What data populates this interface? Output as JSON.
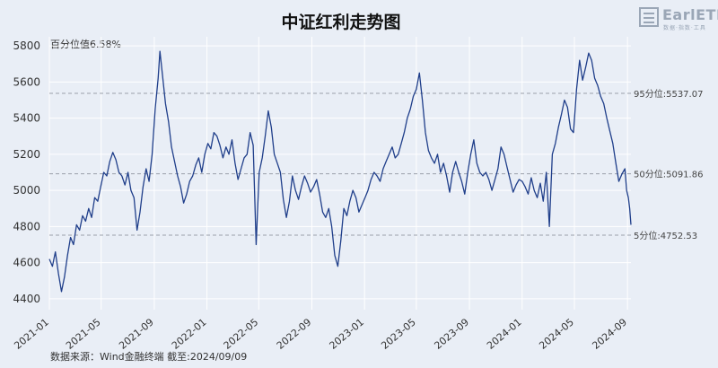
{
  "header": {
    "title": "中证红利走势图",
    "logo_brand": "EarlETF",
    "logo_sub": "数据·指数·工具"
  },
  "percentile_note": "百分位值6.58%",
  "source_note": "数据来源：Wind金融终端 截至:2024/09/09",
  "colors": {
    "line": "#1f3e8a",
    "refline": "#9aa0aa",
    "grid": "#ffffff",
    "background": "#e9eef6"
  },
  "chart_data": {
    "type": "line",
    "title": "中证红利走势图",
    "xlabel": "",
    "ylabel": "",
    "x_ticks": [
      "2021-01",
      "2021-05",
      "2021-09",
      "2022-01",
      "2022-05",
      "2022-09",
      "2023-01",
      "2023-05",
      "2023-09",
      "2024-01",
      "2024-05",
      "2024-09"
    ],
    "y_ticks": [
      4400,
      4600,
      4800,
      5000,
      5200,
      5400,
      5600,
      5800
    ],
    "ylim": [
      4340,
      5850
    ],
    "xlim": [
      "2021-01-01",
      "2024-09-09"
    ],
    "grid": true,
    "reference_lines": [
      {
        "label": "95分位:5537.07",
        "value": 5537.07
      },
      {
        "label": "50分位:5091.86",
        "value": 5091.86
      },
      {
        "label": "5分位:4752.53",
        "value": 4752.53
      }
    ],
    "series": [
      {
        "points": [
          [
            "2021-01-01",
            4620
          ],
          [
            "2021-01-08",
            4580
          ],
          [
            "2021-01-15",
            4660
          ],
          [
            "2021-01-22",
            4540
          ],
          [
            "2021-01-29",
            4440
          ],
          [
            "2021-02-05",
            4520
          ],
          [
            "2021-02-12",
            4640
          ],
          [
            "2021-02-19",
            4740
          ],
          [
            "2021-02-26",
            4700
          ],
          [
            "2021-03-05",
            4810
          ],
          [
            "2021-03-12",
            4780
          ],
          [
            "2021-03-19",
            4860
          ],
          [
            "2021-03-26",
            4830
          ],
          [
            "2021-04-02",
            4900
          ],
          [
            "2021-04-09",
            4850
          ],
          [
            "2021-04-16",
            4960
          ],
          [
            "2021-04-23",
            4940
          ],
          [
            "2021-04-30",
            5020
          ],
          [
            "2021-05-07",
            5100
          ],
          [
            "2021-05-14",
            5080
          ],
          [
            "2021-05-21",
            5160
          ],
          [
            "2021-05-28",
            5210
          ],
          [
            "2021-06-04",
            5170
          ],
          [
            "2021-06-11",
            5100
          ],
          [
            "2021-06-18",
            5080
          ],
          [
            "2021-06-25",
            5030
          ],
          [
            "2021-07-02",
            5100
          ],
          [
            "2021-07-09",
            5000
          ],
          [
            "2021-07-16",
            4960
          ],
          [
            "2021-07-23",
            4780
          ],
          [
            "2021-07-30",
            4880
          ],
          [
            "2021-08-06",
            5020
          ],
          [
            "2021-08-13",
            5120
          ],
          [
            "2021-08-20",
            5050
          ],
          [
            "2021-08-27",
            5200
          ],
          [
            "2021-09-03",
            5450
          ],
          [
            "2021-09-10",
            5620
          ],
          [
            "2021-09-14",
            5770
          ],
          [
            "2021-09-20",
            5640
          ],
          [
            "2021-09-27",
            5480
          ],
          [
            "2021-10-04",
            5380
          ],
          [
            "2021-10-11",
            5240
          ],
          [
            "2021-10-18",
            5160
          ],
          [
            "2021-10-25",
            5080
          ],
          [
            "2021-11-01",
            5020
          ],
          [
            "2021-11-08",
            4930
          ],
          [
            "2021-11-15",
            4980
          ],
          [
            "2021-11-22",
            5050
          ],
          [
            "2021-11-29",
            5080
          ],
          [
            "2021-12-06",
            5140
          ],
          [
            "2021-12-13",
            5180
          ],
          [
            "2021-12-20",
            5100
          ],
          [
            "2021-12-27",
            5200
          ],
          [
            "2022-01-03",
            5260
          ],
          [
            "2022-01-10",
            5230
          ],
          [
            "2022-01-17",
            5320
          ],
          [
            "2022-01-24",
            5300
          ],
          [
            "2022-01-31",
            5250
          ],
          [
            "2022-02-07",
            5180
          ],
          [
            "2022-02-14",
            5240
          ],
          [
            "2022-02-21",
            5200
          ],
          [
            "2022-02-28",
            5280
          ],
          [
            "2022-03-07",
            5150
          ],
          [
            "2022-03-14",
            5060
          ],
          [
            "2022-03-21",
            5120
          ],
          [
            "2022-03-28",
            5180
          ],
          [
            "2022-04-04",
            5200
          ],
          [
            "2022-04-11",
            5320
          ],
          [
            "2022-04-18",
            5250
          ],
          [
            "2022-04-25",
            4700
          ],
          [
            "2022-05-02",
            5100
          ],
          [
            "2022-05-09",
            5180
          ],
          [
            "2022-05-16",
            5300
          ],
          [
            "2022-05-23",
            5440
          ],
          [
            "2022-05-30",
            5350
          ],
          [
            "2022-06-06",
            5200
          ],
          [
            "2022-06-13",
            5150
          ],
          [
            "2022-06-20",
            5100
          ],
          [
            "2022-06-27",
            4950
          ],
          [
            "2022-07-04",
            4850
          ],
          [
            "2022-07-11",
            4940
          ],
          [
            "2022-07-18",
            5080
          ],
          [
            "2022-07-25",
            5000
          ],
          [
            "2022-08-01",
            4950
          ],
          [
            "2022-08-08",
            5020
          ],
          [
            "2022-08-15",
            5080
          ],
          [
            "2022-08-22",
            5040
          ],
          [
            "2022-08-29",
            4990
          ],
          [
            "2022-09-05",
            5020
          ],
          [
            "2022-09-12",
            5060
          ],
          [
            "2022-09-19",
            4980
          ],
          [
            "2022-09-26",
            4880
          ],
          [
            "2022-10-03",
            4850
          ],
          [
            "2022-10-10",
            4900
          ],
          [
            "2022-10-17",
            4800
          ],
          [
            "2022-10-24",
            4640
          ],
          [
            "2022-10-31",
            4580
          ],
          [
            "2022-11-07",
            4720
          ],
          [
            "2022-11-14",
            4900
          ],
          [
            "2022-11-21",
            4860
          ],
          [
            "2022-11-28",
            4940
          ],
          [
            "2022-12-05",
            5000
          ],
          [
            "2022-12-12",
            4960
          ],
          [
            "2022-12-19",
            4880
          ],
          [
            "2022-12-26",
            4920
          ],
          [
            "2023-01-02",
            4960
          ],
          [
            "2023-01-09",
            5000
          ],
          [
            "2023-01-16",
            5060
          ],
          [
            "2023-01-23",
            5100
          ],
          [
            "2023-01-30",
            5080
          ],
          [
            "2023-02-06",
            5050
          ],
          [
            "2023-02-13",
            5120
          ],
          [
            "2023-02-20",
            5160
          ],
          [
            "2023-02-27",
            5200
          ],
          [
            "2023-03-06",
            5240
          ],
          [
            "2023-03-13",
            5180
          ],
          [
            "2023-03-20",
            5200
          ],
          [
            "2023-03-27",
            5260
          ],
          [
            "2023-04-03",
            5320
          ],
          [
            "2023-04-10",
            5400
          ],
          [
            "2023-04-17",
            5450
          ],
          [
            "2023-04-24",
            5520
          ],
          [
            "2023-05-01",
            5560
          ],
          [
            "2023-05-08",
            5650
          ],
          [
            "2023-05-15",
            5500
          ],
          [
            "2023-05-22",
            5320
          ],
          [
            "2023-05-29",
            5220
          ],
          [
            "2023-06-05",
            5180
          ],
          [
            "2023-06-12",
            5150
          ],
          [
            "2023-06-19",
            5200
          ],
          [
            "2023-06-26",
            5100
          ],
          [
            "2023-07-03",
            5150
          ],
          [
            "2023-07-10",
            5080
          ],
          [
            "2023-07-17",
            4990
          ],
          [
            "2023-07-24",
            5100
          ],
          [
            "2023-07-31",
            5160
          ],
          [
            "2023-08-07",
            5100
          ],
          [
            "2023-08-14",
            5050
          ],
          [
            "2023-08-21",
            4980
          ],
          [
            "2023-08-28",
            5100
          ],
          [
            "2023-09-04",
            5200
          ],
          [
            "2023-09-11",
            5280
          ],
          [
            "2023-09-18",
            5150
          ],
          [
            "2023-09-25",
            5100
          ],
          [
            "2023-10-02",
            5080
          ],
          [
            "2023-10-09",
            5100
          ],
          [
            "2023-10-16",
            5060
          ],
          [
            "2023-10-23",
            5000
          ],
          [
            "2023-10-30",
            5060
          ],
          [
            "2023-11-06",
            5120
          ],
          [
            "2023-11-13",
            5240
          ],
          [
            "2023-11-20",
            5200
          ],
          [
            "2023-11-27",
            5130
          ],
          [
            "2023-12-04",
            5060
          ],
          [
            "2023-12-11",
            4990
          ],
          [
            "2023-12-18",
            5030
          ],
          [
            "2023-12-25",
            5060
          ],
          [
            "2024-01-01",
            5050
          ],
          [
            "2024-01-08",
            5020
          ],
          [
            "2024-01-15",
            4980
          ],
          [
            "2024-01-22",
            5070
          ],
          [
            "2024-01-29",
            5000
          ],
          [
            "2024-02-05",
            4960
          ],
          [
            "2024-02-12",
            5040
          ],
          [
            "2024-02-19",
            4940
          ],
          [
            "2024-02-26",
            5100
          ],
          [
            "2024-03-04",
            4800
          ],
          [
            "2024-03-11",
            5200
          ],
          [
            "2024-03-18",
            5260
          ],
          [
            "2024-03-25",
            5350
          ],
          [
            "2024-04-01",
            5420
          ],
          [
            "2024-04-08",
            5500
          ],
          [
            "2024-04-15",
            5460
          ],
          [
            "2024-04-22",
            5340
          ],
          [
            "2024-04-29",
            5320
          ],
          [
            "2024-05-06",
            5560
          ],
          [
            "2024-05-13",
            5720
          ],
          [
            "2024-05-20",
            5610
          ],
          [
            "2024-05-27",
            5680
          ],
          [
            "2024-06-03",
            5760
          ],
          [
            "2024-06-10",
            5720
          ],
          [
            "2024-06-17",
            5620
          ],
          [
            "2024-06-24",
            5580
          ],
          [
            "2024-07-01",
            5520
          ],
          [
            "2024-07-08",
            5480
          ],
          [
            "2024-07-15",
            5400
          ],
          [
            "2024-07-22",
            5330
          ],
          [
            "2024-07-29",
            5260
          ],
          [
            "2024-08-05",
            5150
          ],
          [
            "2024-08-12",
            5050
          ],
          [
            "2024-08-19",
            5090
          ],
          [
            "2024-08-26",
            5120
          ],
          [
            "2024-08-30",
            5000
          ],
          [
            "2024-09-03",
            4960
          ],
          [
            "2024-09-06",
            4900
          ],
          [
            "2024-09-09",
            4810
          ]
        ]
      }
    ]
  }
}
